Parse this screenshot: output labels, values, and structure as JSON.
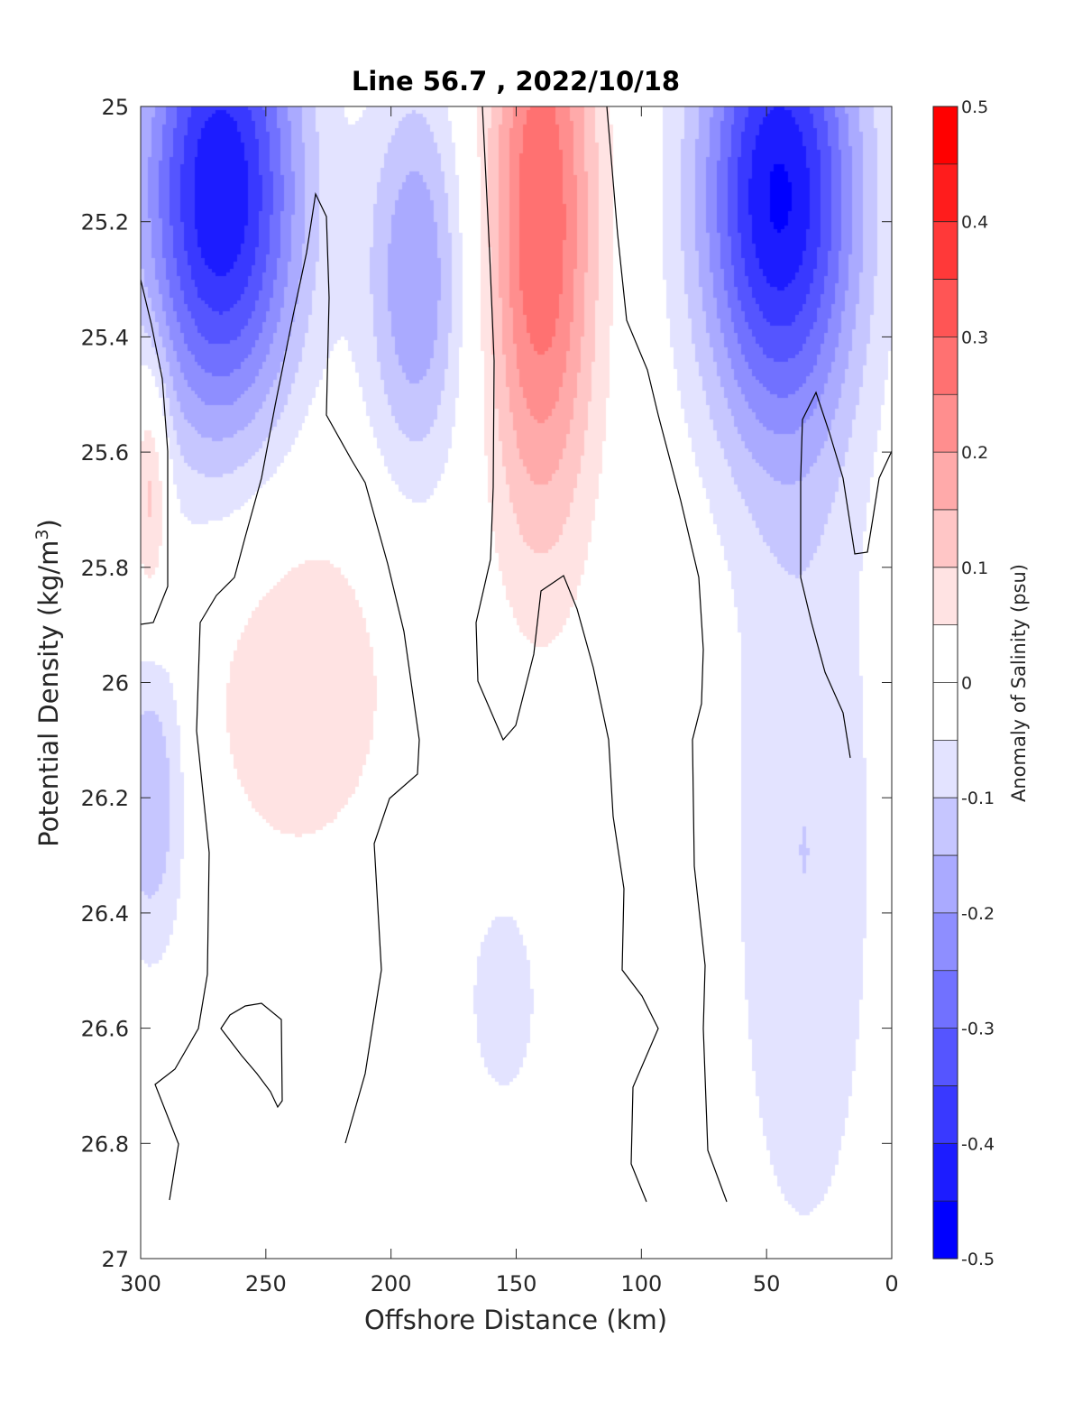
{
  "chart_data": {
    "type": "heatmap",
    "subtype": "filled contour section",
    "title": "Line 56.7 , 2022/10/18",
    "xlabel": "Offshore Distance (km)",
    "ylabel_main": "Potential Density (kg/m",
    "ylabel_sup": "3",
    "ylabel_close": ")",
    "colorbar_label": "Anomaly of Salinity (psu)",
    "xlim": [
      300,
      0
    ],
    "x_reversed": true,
    "ylim": [
      25,
      27
    ],
    "y_reversed": true,
    "xticks": [
      300,
      250,
      200,
      150,
      100,
      50,
      0
    ],
    "xtick_labels": [
      "300",
      "250",
      "200",
      "150",
      "100",
      "50",
      "0"
    ],
    "yticks": [
      25,
      25.2,
      25.4,
      25.6,
      25.8,
      26,
      26.2,
      26.4,
      26.6,
      26.8,
      27
    ],
    "ytick_labels": [
      "25",
      "25.2",
      "25.4",
      "25.6",
      "25.8",
      "26",
      "26.2",
      "26.4",
      "26.6",
      "26.8",
      "27"
    ],
    "clim": [
      -0.5,
      0.5
    ],
    "colorbar_ticks": [
      0.5,
      0.4,
      0.3,
      0.2,
      0.1,
      0,
      -0.1,
      -0.2,
      -0.3,
      -0.4,
      -0.5
    ],
    "colorbar_tick_labels": [
      "0.5",
      "0.4",
      "0.3",
      "0.2",
      "0.1",
      "0",
      "-0.1",
      "-0.2",
      "-0.3",
      "-0.4",
      "-0.5"
    ],
    "contour_interval": 0.05,
    "colormap": [
      "#0000ff",
      "#1c1cff",
      "#3939ff",
      "#5555ff",
      "#7171ff",
      "#8e8eff",
      "#aaaaff",
      "#c6c6ff",
      "#e3e3ff",
      "#ffffff",
      "#ffffff",
      "#ffe3e3",
      "#ffc6c6",
      "#ffaaaa",
      "#ff8e8e",
      "#ff7171",
      "#ff5555",
      "#ff3939",
      "#ff1c1c",
      "#ff0000"
    ],
    "grid": false,
    "features": [
      {
        "name": "strong-negative-core-west",
        "x_center": 268,
        "y_center": 25.15,
        "min_anomaly": -0.45
      },
      {
        "name": "strong-negative-core-east",
        "x_center": 45,
        "y_center": 25.15,
        "min_anomaly": -0.45
      },
      {
        "name": "positive-core-mid",
        "x_center": 140,
        "y_center": 25.2,
        "max_anomaly": 0.3
      },
      {
        "name": "weak-positive-west-deep",
        "x_center": 237,
        "y_center": 26.0,
        "max_anomaly": 0.1
      },
      {
        "name": "weak-positive-west-edge",
        "x_center": 296,
        "y_center": 25.65,
        "max_anomaly": 0.15
      },
      {
        "name": "weak-negative-mid-shallow",
        "x_center": 190,
        "y_center": 25.3,
        "min_anomaly": -0.2
      },
      {
        "name": "weak-negative-east-deep",
        "x_center": 35,
        "y_center": 26.3,
        "min_anomaly": -0.1
      },
      {
        "name": "weak-negative-west-deep",
        "x_center": 296,
        "y_center": 26.2,
        "min_anomaly": -0.15
      },
      {
        "name": "weak-negative-mid-deep",
        "x_center": 155,
        "y_center": 26.55,
        "min_anomaly": -0.1
      }
    ]
  }
}
